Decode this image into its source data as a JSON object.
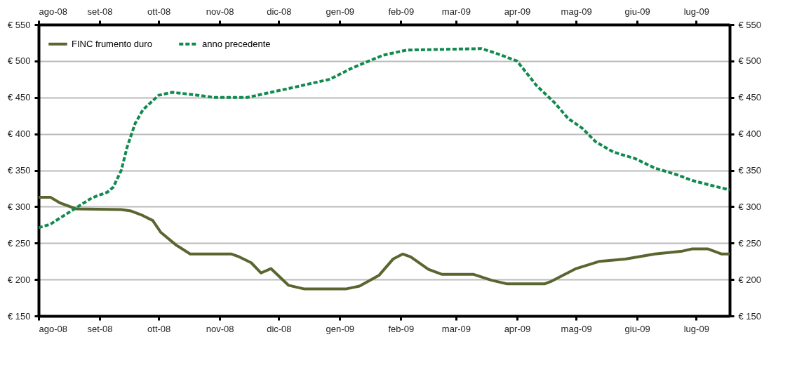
{
  "chart_data": {
    "type": "line",
    "xlim": [
      "2008-08-01",
      "2009-07-18"
    ],
    "xticks": [
      {
        "value": "2008-08-01",
        "label": "ago-08"
      },
      {
        "value": "2008-09-01",
        "label": "set-08"
      },
      {
        "value": "2008-10-01",
        "label": "ott-08"
      },
      {
        "value": "2008-11-01",
        "label": "nov-08"
      },
      {
        "value": "2008-12-01",
        "label": "dic-08"
      },
      {
        "value": "2009-01-01",
        "label": "gen-09"
      },
      {
        "value": "2009-02-01",
        "label": "feb-09"
      },
      {
        "value": "2009-03-01",
        "label": "mar-09"
      },
      {
        "value": "2009-04-01",
        "label": "apr-09"
      },
      {
        "value": "2009-05-01",
        "label": "mag-09"
      },
      {
        "value": "2009-06-01",
        "label": "giu-09"
      },
      {
        "value": "2009-07-01",
        "label": "lug-09"
      }
    ],
    "x2lim": [
      "2008-08-01",
      "2009-07-18"
    ],
    "x2ticks": [
      {
        "value": "2008-08-01",
        "label": "ago-08"
      },
      {
        "value": "2008-09-01",
        "label": "set-08"
      },
      {
        "value": "2008-10-01",
        "label": "ott-08"
      },
      {
        "value": "2008-11-01",
        "label": "nov-08"
      },
      {
        "value": "2008-12-01",
        "label": "dic-08"
      },
      {
        "value": "2009-01-01",
        "label": "gen-09"
      },
      {
        "value": "2009-02-01",
        "label": "feb-09"
      },
      {
        "value": "2009-03-01",
        "label": "mar-09"
      },
      {
        "value": "2009-04-01",
        "label": "apr-09"
      },
      {
        "value": "2009-05-01",
        "label": "mag-09"
      },
      {
        "value": "2009-06-01",
        "label": "giu-09"
      },
      {
        "value": "2009-07-01",
        "label": "lug-09"
      }
    ],
    "ylim": [
      150,
      550
    ],
    "yticks": [
      {
        "value": 150,
        "label": "€ 150"
      },
      {
        "value": 200,
        "label": "€ 200"
      },
      {
        "value": 250,
        "label": "€ 250"
      },
      {
        "value": 300,
        "label": "€ 300"
      },
      {
        "value": 350,
        "label": "€ 350"
      },
      {
        "value": 400,
        "label": "€ 400"
      },
      {
        "value": 450,
        "label": "€ 450"
      },
      {
        "value": 500,
        "label": "€ 500"
      },
      {
        "value": 550,
        "label": "€ 550"
      }
    ],
    "y2lim": [
      150,
      550
    ],
    "y2ticks": [
      {
        "value": 150,
        "label": "€ 150"
      },
      {
        "value": 200,
        "label": "€ 200"
      },
      {
        "value": 250,
        "label": "€ 250"
      },
      {
        "value": 300,
        "label": "€ 300"
      },
      {
        "value": 350,
        "label": "€ 350"
      },
      {
        "value": 400,
        "label": "€ 400"
      },
      {
        "value": 450,
        "label": "€ 450"
      },
      {
        "value": 500,
        "label": "€ 500"
      },
      {
        "value": 550,
        "label": "€ 550"
      }
    ],
    "grid": "y",
    "legend": "top left",
    "series": [
      {
        "name": "FINC frumento duro",
        "color": "#5a6630",
        "line_style": "solid",
        "x": [
          "2008-08-01",
          "2008-08-07",
          "2008-08-12",
          "2008-08-20",
          "2008-09-12",
          "2008-09-17",
          "2008-09-22",
          "2008-09-28",
          "2008-10-02",
          "2008-10-10",
          "2008-10-17",
          "2008-11-07",
          "2008-11-11",
          "2008-11-17",
          "2008-11-22",
          "2008-11-27",
          "2008-12-06",
          "2008-12-14",
          "2009-01-04",
          "2009-01-11",
          "2009-01-21",
          "2009-01-28",
          "2009-02-02",
          "2009-02-06",
          "2009-02-15",
          "2009-02-22",
          "2009-03-10",
          "2009-03-19",
          "2009-03-27",
          "2009-04-15",
          "2009-04-18",
          "2009-05-01",
          "2009-05-13",
          "2009-05-26",
          "2009-06-10",
          "2009-06-24",
          "2009-06-29",
          "2009-07-07",
          "2009-07-14",
          "2009-07-18"
        ],
        "values": [
          313,
          313,
          305,
          297,
          296,
          294,
          289,
          281,
          265,
          247,
          235,
          235,
          231,
          223,
          209,
          215,
          192,
          187,
          187,
          191,
          206,
          228,
          235,
          231,
          214,
          207,
          207,
          199,
          194,
          194,
          197,
          215,
          225,
          228,
          235,
          239,
          242,
          242,
          235,
          235
        ]
      },
      {
        "name": "anno precedente",
        "color": "#118a4f",
        "line_style": "dashed",
        "x": [
          "2008-08-01",
          "2008-08-07",
          "2008-08-14",
          "2008-08-21",
          "2008-08-28",
          "2008-09-05",
          "2008-09-08",
          "2008-09-12",
          "2008-09-15",
          "2008-09-19",
          "2008-09-23",
          "2008-10-01",
          "2008-10-08",
          "2008-10-21",
          "2008-10-29",
          "2008-11-15",
          "2008-11-27",
          "2008-12-09",
          "2008-12-27",
          "2009-01-07",
          "2009-01-23",
          "2009-02-04",
          "2009-03-14",
          "2009-03-21",
          "2009-04-01",
          "2009-04-11",
          "2009-04-20",
          "2009-04-27",
          "2009-05-04",
          "2009-05-11",
          "2009-05-20",
          "2009-05-31",
          "2009-06-10",
          "2009-06-21",
          "2009-06-29",
          "2009-07-09",
          "2009-07-18"
        ],
        "values": [
          271,
          276,
          288,
          300,
          312,
          320,
          327,
          350,
          382,
          414,
          433,
          453,
          457,
          453,
          450,
          450,
          457,
          464,
          475,
          490,
          508,
          515,
          517,
          511,
          500,
          466,
          443,
          421,
          408,
          389,
          375,
          366,
          353,
          344,
          336,
          329,
          323
        ]
      }
    ]
  }
}
